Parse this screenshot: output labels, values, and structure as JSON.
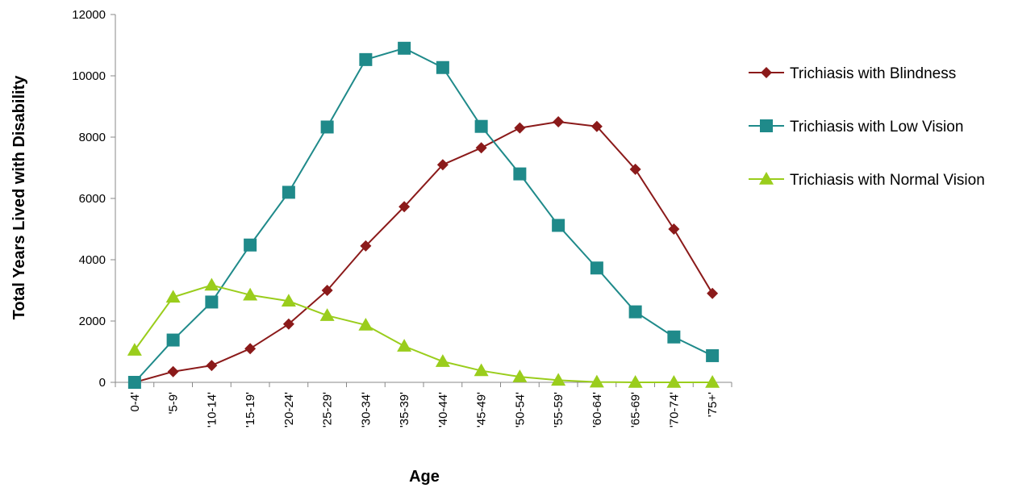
{
  "chart_data": {
    "type": "line",
    "title": "",
    "xlabel": "Age",
    "ylabel": "Total Years Lived with Disability",
    "ylim": [
      0,
      12000
    ],
    "yticks": [
      0,
      2000,
      4000,
      6000,
      8000,
      10000,
      12000
    ],
    "grid": false,
    "legend_position": "right",
    "categories": [
      "0-4'",
      "'5-9'",
      "'10-14'",
      "'15-19'",
      "'20-24'",
      "'25-29'",
      "'30-34'",
      "'35-39'",
      "'40-44'",
      "'45-49'",
      "'50-54'",
      "'55-59'",
      "'60-64'",
      "'65-69'",
      "'70-74'",
      "'75+'"
    ],
    "series": [
      {
        "name": "Trichiasis with Blindness",
        "color": "#8b1a1a",
        "marker": "diamond",
        "values": [
          0,
          350,
          550,
          1100,
          1900,
          3000,
          4450,
          5730,
          7100,
          7650,
          8300,
          8500,
          8350,
          6950,
          5000,
          2900
        ]
      },
      {
        "name": "Trichiasis with Low Vision",
        "color": "#1f8a8a",
        "marker": "square",
        "values": [
          0,
          1380,
          2620,
          4480,
          6200,
          8330,
          10530,
          10900,
          10270,
          8350,
          6800,
          5120,
          3730,
          2300,
          1480,
          870
        ]
      },
      {
        "name": "Trichiasis with Normal Vision",
        "color": "#9acd1c",
        "marker": "triangle",
        "values": [
          1050,
          2780,
          3170,
          2850,
          2650,
          2180,
          1870,
          1180,
          680,
          380,
          180,
          70,
          10,
          0,
          0,
          0
        ]
      }
    ]
  }
}
